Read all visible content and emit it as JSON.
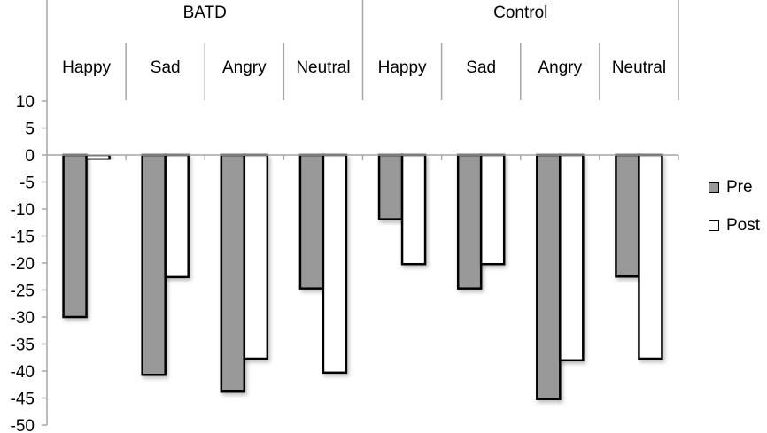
{
  "chart_data": {
    "type": "bar",
    "title": "",
    "xlabel": "",
    "ylabel": "",
    "ylim": [
      -50,
      10
    ],
    "yticks": [
      10,
      5,
      0,
      -5,
      -10,
      -15,
      -20,
      -25,
      -30,
      -35,
      -40,
      -45,
      -50
    ],
    "grid": false,
    "legend_position": "right",
    "groups": [
      {
        "label": "BATD",
        "categories": [
          "Happy",
          "Sad",
          "Angry",
          "Neutral"
        ]
      },
      {
        "label": "Control",
        "categories": [
          "Happy",
          "Sad",
          "Angry",
          "Neutral"
        ]
      }
    ],
    "categories": [
      "BATD Happy",
      "BATD Sad",
      "BATD Angry",
      "BATD Neutral",
      "Control Happy",
      "Control Sad",
      "Control Angry",
      "Control Neutral"
    ],
    "series": [
      {
        "name": "Pre",
        "color": "#999999",
        "values": [
          -30,
          -40.7,
          -43.8,
          -24.7,
          -11.9,
          -24.7,
          -45.2,
          -22.5
        ]
      },
      {
        "name": "Post",
        "color": "#ffffff",
        "values": [
          -0.8,
          -22.6,
          -37.7,
          -40.3,
          -20.2,
          -20.2,
          -38.0,
          -37.7
        ]
      }
    ]
  },
  "legend": {
    "items": [
      {
        "label": "Pre",
        "color": "#999999"
      },
      {
        "label": "Post",
        "color": "#ffffff"
      }
    ]
  }
}
